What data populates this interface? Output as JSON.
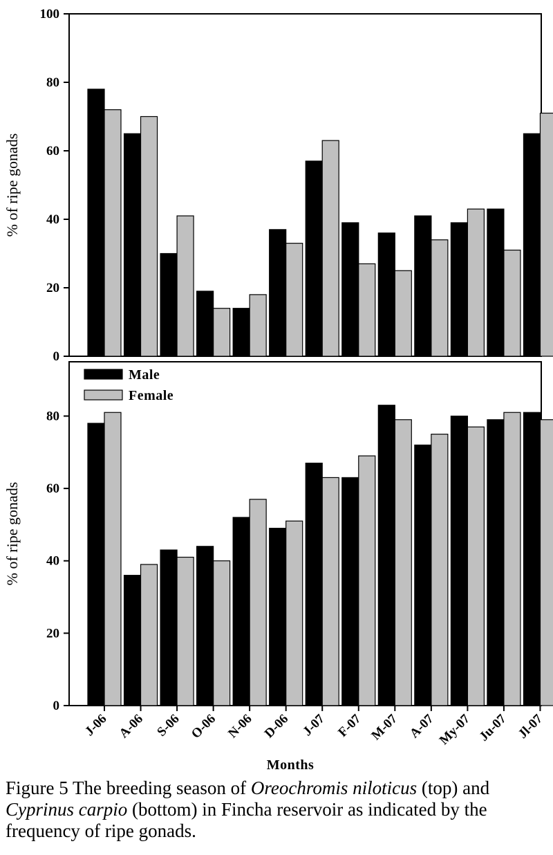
{
  "chart_data": [
    {
      "type": "bar",
      "ylabel": "% of ripe gonads",
      "ylim": [
        0,
        100
      ],
      "yticks": [
        0,
        20,
        40,
        60,
        80,
        100
      ],
      "categories": [
        "J-06",
        "A-06",
        "S-06",
        "O-06",
        "N-06",
        "D-06",
        "J-07",
        "F-07",
        "M-07",
        "A-07",
        "My-07",
        "Ju-07",
        "Jl-07"
      ],
      "series": [
        {
          "name": "Male",
          "color": "#000000",
          "values": [
            78,
            65,
            30,
            19,
            14,
            37,
            57,
            39,
            36,
            41,
            39,
            43,
            65
          ]
        },
        {
          "name": "Female",
          "color": "#c0c0c0",
          "values": [
            72,
            70,
            41,
            14,
            18,
            33,
            63,
            27,
            25,
            34,
            43,
            31,
            71
          ]
        }
      ]
    },
    {
      "type": "bar",
      "ylabel": "% of ripe gonads",
      "xlabel": "Months",
      "ylim": [
        0,
        95
      ],
      "yticks": [
        0,
        20,
        40,
        60,
        80
      ],
      "legend_position": "top-left",
      "categories": [
        "J-06",
        "A-06",
        "S-06",
        "O-06",
        "N-06",
        "D-06",
        "J-07",
        "F-07",
        "M-07",
        "A-07",
        "My-07",
        "Ju-07",
        "Jl-07"
      ],
      "series": [
        {
          "name": "Male",
          "color": "#000000",
          "values": [
            78,
            36,
            43,
            44,
            52,
            49,
            67,
            63,
            83,
            72,
            80,
            79,
            81
          ]
        },
        {
          "name": "Female",
          "color": "#c0c0c0",
          "values": [
            81,
            39,
            41,
            40,
            57,
            51,
            63,
            69,
            79,
            75,
            77,
            81,
            79
          ]
        }
      ]
    }
  ],
  "caption": {
    "prefix": "Figure 5 The breeding season of ",
    "species1": "Oreochromis niloticus",
    "mid1": " (top) and ",
    "species2": "Cyprinus carpio",
    "suffix": " (bottom) in Fincha reservoir as indicated by the frequency of ripe gonads."
  }
}
